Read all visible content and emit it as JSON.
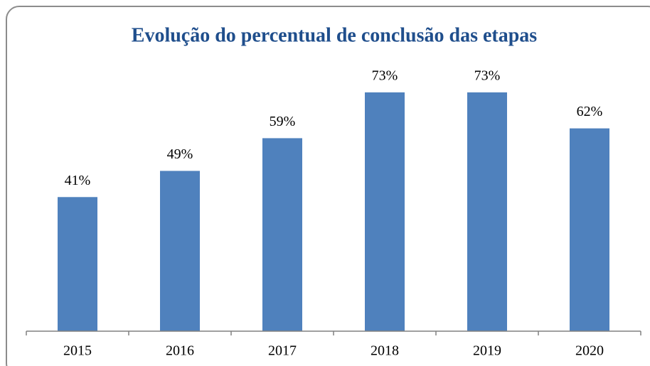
{
  "chart_data": {
    "type": "bar",
    "title": "Evolução do percentual de conclusão das etapas",
    "categories": [
      "2015",
      "2016",
      "2017",
      "2018",
      "2019",
      "2020"
    ],
    "values": [
      41,
      49,
      59,
      73,
      73,
      62
    ],
    "value_labels": [
      "41%",
      "49%",
      "59%",
      "73%",
      "73%",
      "62%"
    ],
    "color": "#4f81bd"
  }
}
